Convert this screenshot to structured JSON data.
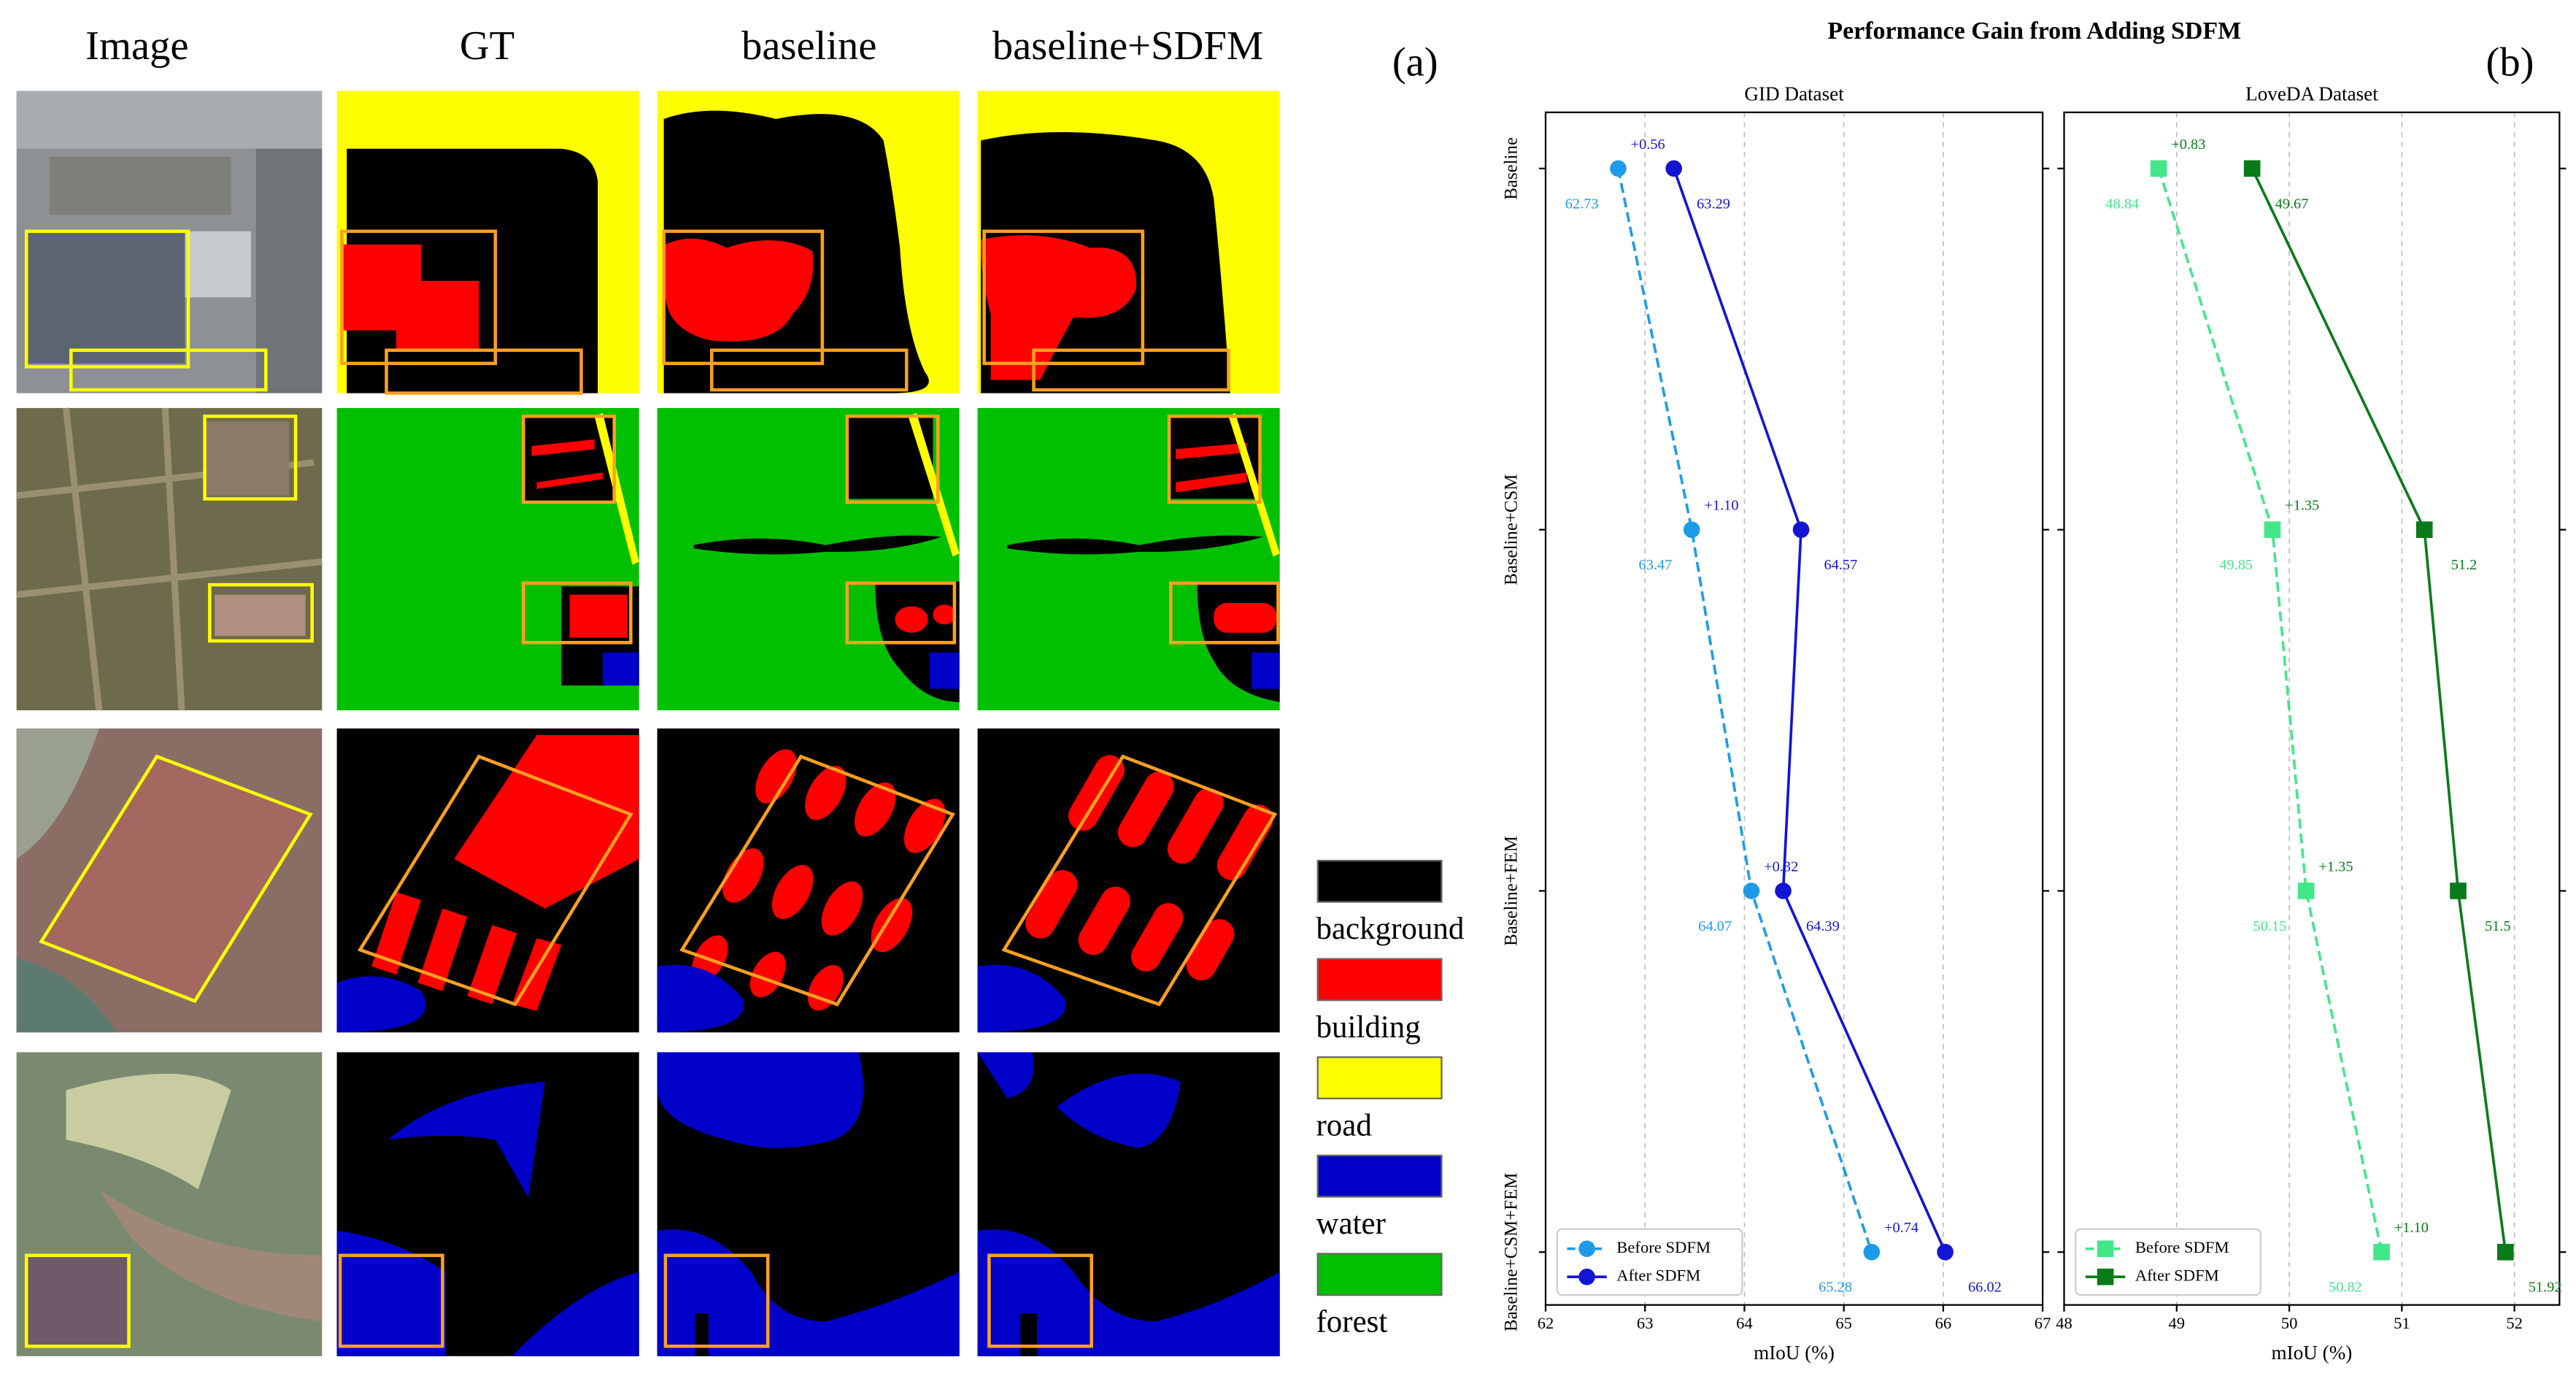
{
  "panel_a": {
    "label": "(a)",
    "columns": [
      "Image",
      "GT",
      "baseline",
      "baseline+SDFM"
    ],
    "legend": [
      {
        "name": "background",
        "color": "#000000"
      },
      {
        "name": "building",
        "color": "#ff0000"
      },
      {
        "name": "road",
        "color": "#ffff00"
      },
      {
        "name": "water",
        "color": "#0000c8"
      },
      {
        "name": "forest",
        "color": "#00c000"
      }
    ]
  },
  "panel_b": {
    "label": "(b)",
    "title": "Performance Gain from Adding SDFM"
  },
  "chart_data": [
    {
      "type": "line",
      "title": "GID Dataset",
      "xlabel": "mIoU (%)",
      "categories": [
        "Baseline",
        "Baseline+CSM",
        "Baseline+FEM",
        "Baseline+CSM+FEM"
      ],
      "xlim": [
        62,
        67
      ],
      "xticks": [
        62,
        63,
        64,
        65,
        66,
        67
      ],
      "grid": true,
      "legend": "lower left",
      "marker": "circle",
      "series": [
        {
          "name": "Before SDFM",
          "color": "#1e9be8",
          "linestyle": "dashed",
          "values": [
            62.73,
            63.47,
            64.07,
            65.28
          ]
        },
        {
          "name": "After SDFM",
          "color": "#1414d4",
          "linestyle": "solid",
          "values": [
            63.29,
            64.57,
            64.39,
            66.02
          ]
        }
      ],
      "annotations": [
        "+0.56",
        "+1.10",
        "+0.32",
        "+0.74"
      ]
    },
    {
      "type": "line",
      "title": "LoveDA Dataset",
      "xlabel": "mIoU (%)",
      "categories": [
        null,
        null,
        null,
        null
      ],
      "xlim": [
        48,
        52.4
      ],
      "xticks": [
        48,
        49,
        50,
        51,
        52
      ],
      "grid": true,
      "legend": "lower left",
      "marker": "square",
      "series": [
        {
          "name": "Before SDFM",
          "color": "#44e68a",
          "linestyle": "dashed",
          "values": [
            48.84,
            49.85,
            50.15,
            50.82
          ]
        },
        {
          "name": "After SDFM",
          "color": "#0a7a1a",
          "linestyle": "solid",
          "values": [
            49.67,
            51.2,
            51.5,
            51.92
          ]
        }
      ],
      "annotations": [
        "+0.83",
        "+1.35",
        "+1.35",
        "+1.10"
      ]
    }
  ]
}
